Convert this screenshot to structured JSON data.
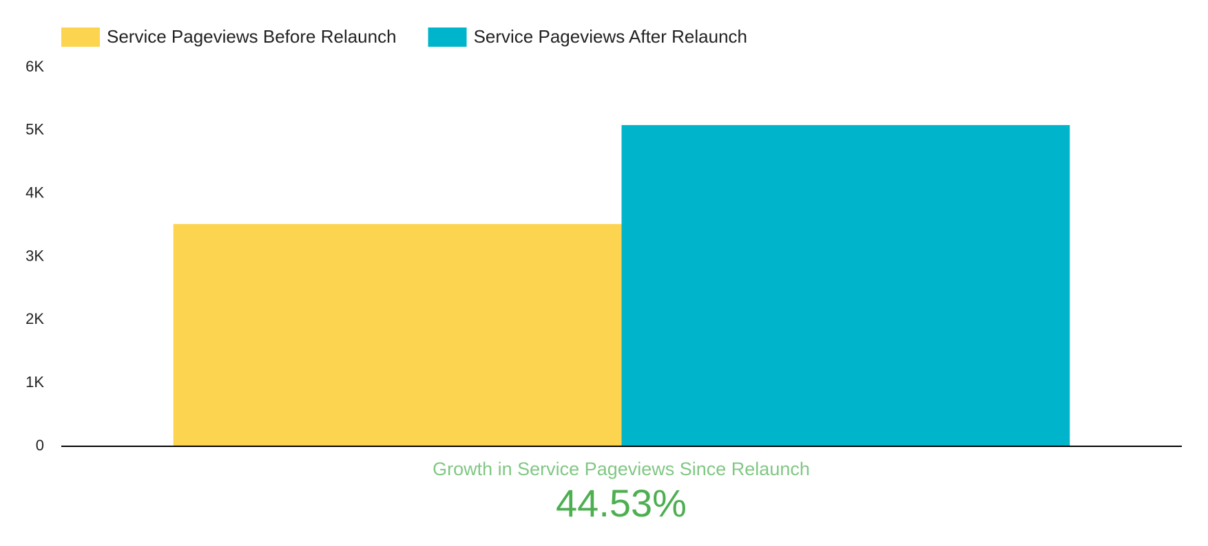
{
  "chart_data": {
    "type": "bar",
    "categories": [
      null
    ],
    "series": [
      {
        "name": "Service Pageviews Before Relaunch",
        "color": "#fdd44f",
        "values": [
          3520
        ]
      },
      {
        "name": "Service Pageviews After Relaunch",
        "color": "#00b5cb",
        "values": [
          5087
        ]
      }
    ],
    "ylim": [
      0,
      6000
    ],
    "yticks": [
      0,
      {
        "value": 1000,
        "label": "1K"
      },
      {
        "value": 2000,
        "label": "2K"
      },
      {
        "value": 3000,
        "label": "3K"
      },
      {
        "value": 4000,
        "label": "4K"
      },
      {
        "value": 5000,
        "label": "5K"
      },
      {
        "value": 6000,
        "label": "6K"
      }
    ],
    "grid": false,
    "legend": "top-left",
    "annotation": {
      "text": "Growth in Service Pageviews Since Relaunch",
      "value": 44.53,
      "value_label": "44.53%"
    }
  }
}
